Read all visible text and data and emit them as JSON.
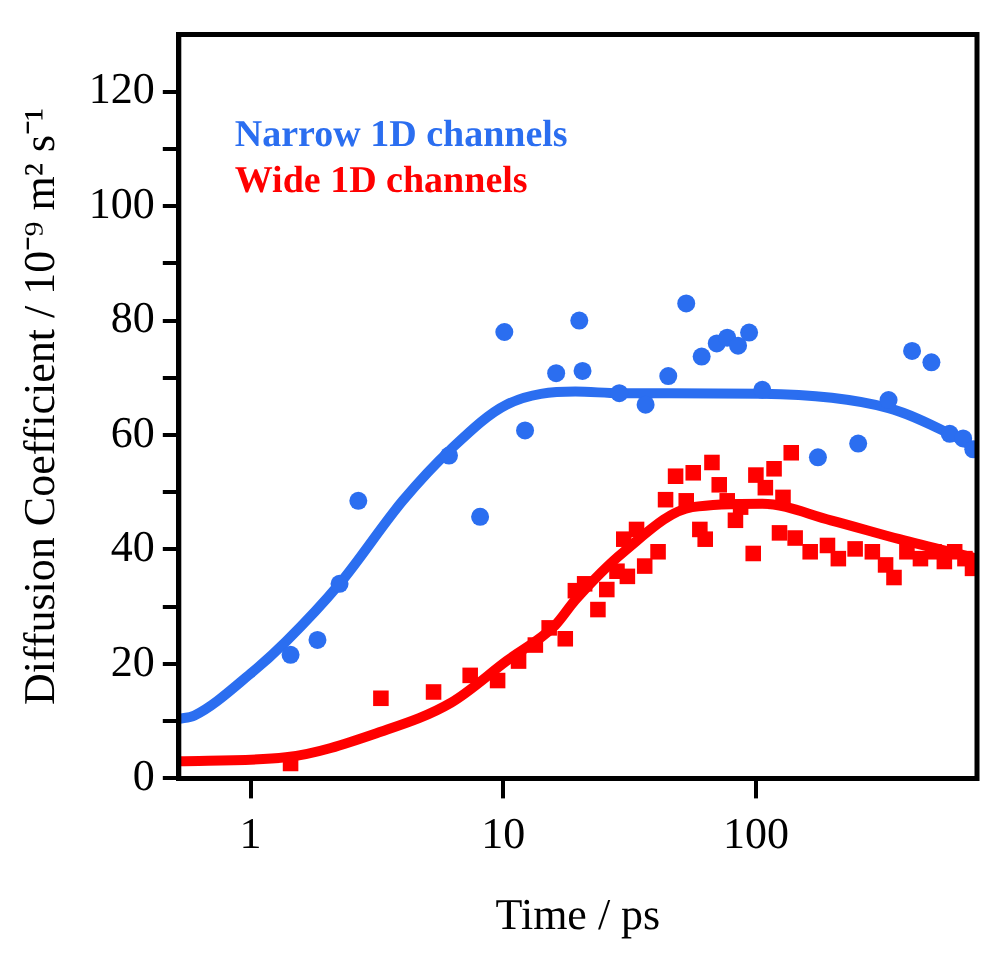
{
  "chart_data": {
    "type": "scatter",
    "xlabel": "Time / ps",
    "ylabel": "Diffusion Coefficient / 10⁻⁹ m² s⁻¹",
    "log": "x",
    "xlim": [
      0.52,
      750
    ],
    "xticks": [
      1,
      10,
      100
    ],
    "ylim": [
      0,
      130
    ],
    "yticks": [
      0,
      {
        "value": 10,
        "label": null
      },
      20,
      {
        "value": 30,
        "label": null
      },
      40,
      {
        "value": 50,
        "label": null
      },
      60,
      {
        "value": 70,
        "label": null
      },
      80,
      {
        "value": 90,
        "label": null
      },
      100,
      {
        "value": 110,
        "label": null
      },
      120
    ],
    "grid": false,
    "legend": "top left",
    "series": [
      {
        "name": "Narrow 1D channels",
        "type": "scatter",
        "marker": "circle",
        "color": "#2b6ef0",
        "x": [
          1.44,
          1.84,
          2.25,
          2.67,
          6.1,
          8.1,
          10.1,
          12.2,
          16.2,
          20,
          20.6,
          28.8,
          36.6,
          45,
          53,
          61,
          70,
          77,
          85,
          94,
          106,
          176,
          254,
          335,
          415,
          495,
          585,
          661,
          725
        ],
        "values": [
          21.6,
          24.2,
          34,
          48.5,
          56.4,
          45.7,
          78,
          60.8,
          70.8,
          80,
          71.2,
          67.3,
          65.3,
          70.3,
          83,
          73.7,
          76,
          77,
          75.6,
          77.9,
          67.9,
          56.1,
          58.5,
          66.1,
          74.7,
          72.7,
          60.2,
          59.4,
          57.5
        ]
      },
      {
        "name": "Wide 1D channels",
        "type": "scatter",
        "marker": "square",
        "color": "#ff0000",
        "x": [
          1.44,
          3.28,
          5.3,
          7.4,
          9.5,
          11.5,
          13.4,
          15.2,
          17.6,
          19.3,
          21,
          23.7,
          25.7,
          28.2,
          30,
          31,
          33.7,
          36.3,
          41,
          43.9,
          48.1,
          53,
          56.5,
          60,
          63,
          67,
          71.6,
          77,
          83,
          87,
          97.6,
          100,
          109,
          118,
          124,
          128,
          138,
          143,
          164,
          192,
          212,
          247,
          289,
          326,
          352,
          396,
          448,
          507,
          557,
          612,
          672,
          720
        ],
        "values": [
          2.6,
          14,
          15.1,
          18,
          17.1,
          20.5,
          23.3,
          26.3,
          24.4,
          32.8,
          34,
          29.5,
          33,
          36.2,
          41.8,
          35.3,
          43.5,
          37.1,
          39.6,
          48.7,
          52.8,
          48.5,
          53.4,
          43.5,
          41.8,
          55.2,
          51.3,
          48.5,
          45.1,
          47.4,
          39.3,
          53,
          50.8,
          54.1,
          42.9,
          49.1,
          56.9,
          42,
          39.6,
          40.7,
          38.4,
          40.1,
          39.6,
          37.3,
          35.1,
          39.6,
          38.4,
          39.6,
          37.9,
          39.6,
          38.4,
          36.7
        ]
      },
      {
        "type": "line",
        "marker": "none",
        "color": "#2b6ef0",
        "x": [
          0.52,
          0.6,
          1,
          1.38,
          2.25,
          4,
          6.2,
          10.3,
          19.3,
          28.8,
          106,
          335,
          585,
          750
        ],
        "values": [
          10.4,
          11,
          18.3,
          23.9,
          34,
          48.5,
          57.5,
          65.3,
          67.6,
          67.3,
          67.2,
          64.7,
          60.2,
          57.5
        ]
      },
      {
        "type": "line",
        "marker": "none",
        "color": "#ff0000",
        "x": [
          0.52,
          1.38,
          3.3,
          6.2,
          10.3,
          16,
          19.3,
          30,
          56,
          106,
          198,
          370,
          750
        ],
        "values": [
          3,
          3.7,
          8.2,
          13.2,
          20.5,
          26.7,
          31.2,
          39.6,
          47.4,
          48,
          45.1,
          41.8,
          38.4
        ]
      }
    ]
  }
}
